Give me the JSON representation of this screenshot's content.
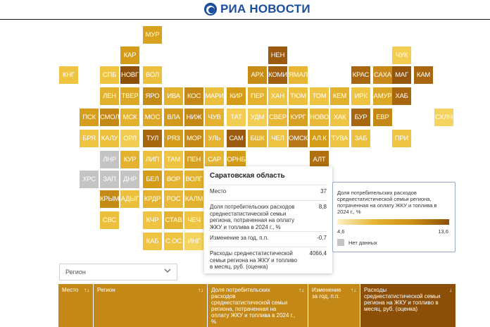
{
  "header": {
    "logo_text": "РИА НОВОСТИ"
  },
  "map": {
    "cells": [
      {
        "code": "МУР",
        "color": "#d9a21e"
      },
      {
        "code": "КАР",
        "color": "#d59c18"
      },
      {
        "code": "НЕН",
        "color": "#9c5a0e"
      },
      {
        "code": "ЧУК",
        "color": "#f2cd52"
      },
      {
        "code": "КНГ",
        "color": "#efc442"
      },
      {
        "code": "СПБ",
        "color": "#efc442"
      },
      {
        "code": "НОВГ",
        "color": "#8e5109"
      },
      {
        "code": "ВОЛ",
        "color": "#ecbf3c"
      },
      {
        "code": "АРХ",
        "color": "#c88d16"
      },
      {
        "code": "КОМИ",
        "color": "#a2600f"
      },
      {
        "code": "ЯМАЛ",
        "color": "#e6b634"
      },
      {
        "code": "КРАС",
        "color": "#a8670f"
      },
      {
        "code": "САХА",
        "color": "#c9891a"
      },
      {
        "code": "МАГ",
        "color": "#94560c"
      },
      {
        "code": "КАМ",
        "color": "#a8670f"
      },
      {
        "code": "ЛЕН",
        "color": "#e2b12e"
      },
      {
        "code": "ТВЕР",
        "color": "#dba725"
      },
      {
        "code": "ЯРО",
        "color": "#c68a17"
      },
      {
        "code": "ИВА",
        "color": "#e2b12e"
      },
      {
        "code": "КОС",
        "color": "#c48816"
      },
      {
        "code": "МАРИ",
        "color": "#ecbf3c"
      },
      {
        "code": "КИР",
        "color": "#d59c18"
      },
      {
        "code": "ПЕР",
        "color": "#e5b22f"
      },
      {
        "code": "ХАН",
        "color": "#efc442"
      },
      {
        "code": "ТЮМ",
        "color": "#ecbf3c"
      },
      {
        "code": "ТОМ",
        "color": "#efc442"
      },
      {
        "code": "КЕМ",
        "color": "#e2b12e"
      },
      {
        "code": "ИРК",
        "color": "#efc442"
      },
      {
        "code": "АМУР",
        "color": "#dca626"
      },
      {
        "code": "ХАБ",
        "color": "#a8670f"
      },
      {
        "code": "ПСК",
        "color": "#d69e1b"
      },
      {
        "code": "СМОЛ",
        "color": "#c48816"
      },
      {
        "code": "МСК",
        "color": "#e2b12e"
      },
      {
        "code": "МОС",
        "color": "#dba725"
      },
      {
        "code": "ВЛА",
        "color": "#d3991a"
      },
      {
        "code": "НИЖ",
        "color": "#c48816"
      },
      {
        "code": "ЧУВ",
        "color": "#e5b22f"
      },
      {
        "code": "ТАТ",
        "color": "#f2cd52"
      },
      {
        "code": "УДМ",
        "color": "#f2cd52"
      },
      {
        "code": "СВЕР",
        "color": "#e6b634"
      },
      {
        "code": "КУРГ",
        "color": "#d8a022"
      },
      {
        "code": "НОВО",
        "color": "#e8b838"
      },
      {
        "code": "ХАК",
        "color": "#efc442"
      },
      {
        "code": "БУР",
        "color": "#a8670f"
      },
      {
        "code": "ЕВР",
        "color": "#c48816"
      },
      {
        "code": "СХЛН",
        "color": "#f4d35e"
      },
      {
        "code": "БРЯ",
        "color": "#efc442"
      },
      {
        "code": "КАЛУ",
        "color": "#ecbf3c"
      },
      {
        "code": "ОРЛ",
        "color": "#f2cd52"
      },
      {
        "code": "ТУЛ",
        "color": "#a8670f"
      },
      {
        "code": "РЯЗ",
        "color": "#d59c18"
      },
      {
        "code": "МОР",
        "color": "#c48816"
      },
      {
        "code": "УЛЬ",
        "color": "#e5b22f"
      },
      {
        "code": "САМ",
        "color": "#9c5a0e"
      },
      {
        "code": "БШК",
        "color": "#e2b12e"
      },
      {
        "code": "ЧЕЛ",
        "color": "#efc442"
      },
      {
        "code": "ОМСК",
        "color": "#b8771a"
      },
      {
        "code": "АЛ.К",
        "color": "#d59c18"
      },
      {
        "code": "ТУВА",
        "color": "#efc442"
      },
      {
        "code": "ЗАБ",
        "color": "#ecbf3c"
      },
      {
        "code": "ПРИ",
        "color": "#efc442"
      },
      {
        "code": "ЛНР",
        "color": "#c4c4c4"
      },
      {
        "code": "КУР",
        "color": "#e5b22f"
      },
      {
        "code": "ЛИП",
        "color": "#ecbf3c"
      },
      {
        "code": "ТАМ",
        "color": "#efc442"
      },
      {
        "code": "ПЕН",
        "color": "#d8a022"
      },
      {
        "code": "САР",
        "color": "#e6b634"
      },
      {
        "code": "ОРНБ",
        "color": "#d59c18"
      },
      {
        "code": "АЛТ",
        "color": "#b0700f"
      },
      {
        "code": "ХРС",
        "color": "#c4c4c4"
      },
      {
        "code": "ЗАП",
        "color": "#c4c4c4"
      },
      {
        "code": "ДНР",
        "color": "#c4c4c4"
      },
      {
        "code": "БЕЛ",
        "color": "#d59c18"
      },
      {
        "code": "ВОР",
        "color": "#e5b22f"
      },
      {
        "code": "ВОЛГ",
        "color": "#e2b12e"
      },
      {
        "code": "КРЫМ",
        "color": "#c68a17"
      },
      {
        "code": "АДЫГ",
        "color": "#ecbf3c"
      },
      {
        "code": "КРДР",
        "color": "#e5b22f"
      },
      {
        "code": "РОС",
        "color": "#e8b838"
      },
      {
        "code": "КАЛМ",
        "color": "#e2b12e"
      },
      {
        "code": "СВС",
        "color": "#ecbf3c"
      },
      {
        "code": "КЧР",
        "color": "#efc442"
      },
      {
        "code": "СТАВ",
        "color": "#e5b22f"
      },
      {
        "code": "ЧЕЧ",
        "color": "#efc442"
      },
      {
        "code": "КАБ",
        "color": "#efc442"
      },
      {
        "code": "С.ОС",
        "color": "#efc442"
      },
      {
        "code": "ИНГ",
        "color": "#f4d35e"
      }
    ]
  },
  "tooltip": {
    "title": "Саратовская область",
    "rows": [
      {
        "label": "Место",
        "value": "37"
      },
      {
        "label": "Доля потребительских расходов среднестатистической семьи региона, потраченная на оплату ЖКУ и топлива в 2024 г., %",
        "value": "8,8"
      },
      {
        "label": "Изменение за год, п.п.",
        "value": "-0,7"
      },
      {
        "label": "Расходы среднестатистической семьи региона на ЖКУ и топливо в месяц, руб. (оценка)",
        "value": "4066,4"
      }
    ]
  },
  "legend": {
    "title": "Доля потребительских расходов среднестатистической семьи региона, потраченная на оплату ЖКУ и топлива в 2024 г., %",
    "min": "4,6",
    "max": "13,6",
    "nodata": "Нет данных"
  },
  "filter": {
    "label": "Регион",
    "chevron_icon": "chevron-down-icon"
  },
  "table": {
    "columns": [
      {
        "label": "Место",
        "sort": "↑↓",
        "color": "#c48816"
      },
      {
        "label": "Регион",
        "sort": "↑↓",
        "color": "#c48816"
      },
      {
        "label": "Доля потребительских расходов среднестатистической семьи региона, потраченная на оплату ЖКУ и топлива в 2024 г., %",
        "sort": "↑↓",
        "color": "#c48816"
      },
      {
        "label": "Изменение за год, п.п.",
        "sort": "↑↓",
        "color": "#c48816"
      },
      {
        "label": "Расходы среднестатистической семьи региона на ЖКУ и топливо в месяц, руб. (оценка)",
        "sort": "↓",
        "color": "#8b4f07"
      }
    ]
  }
}
